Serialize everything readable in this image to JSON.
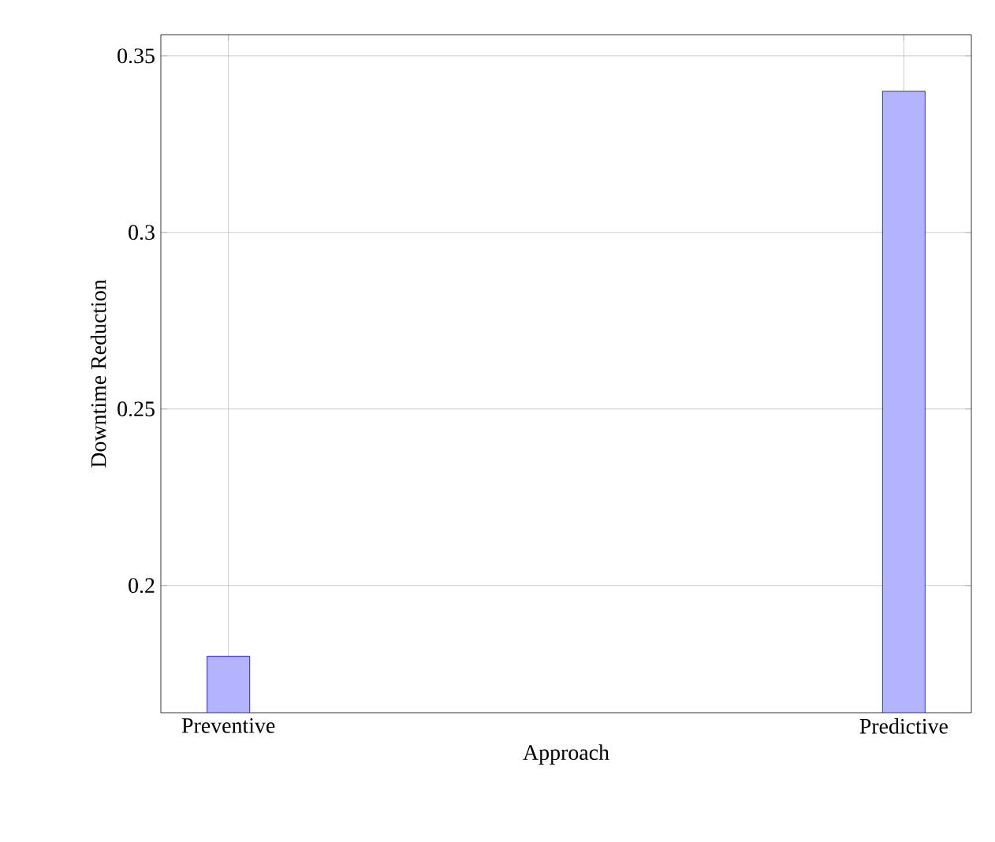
{
  "chart_data": {
    "type": "bar",
    "xlabel": "Approach",
    "ylabel": "Downtime Reduction",
    "categories": [
      "Preventive",
      "Predictive"
    ],
    "series": [
      {
        "color": "#b3b3ff",
        "values": [
          0.18,
          0.34
        ]
      }
    ],
    "ylim": [
      0.164,
      0.356
    ],
    "yticks": [
      0.2,
      0.25,
      0.3,
      0.35
    ],
    "grid": true
  }
}
